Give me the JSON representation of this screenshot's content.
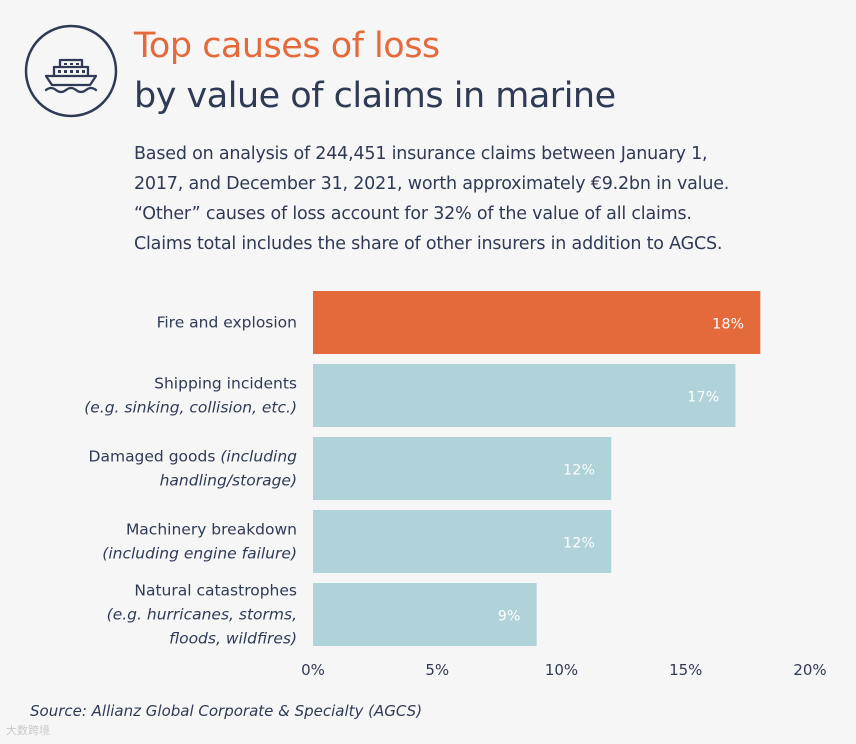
{
  "title": {
    "line1": "Top causes of loss",
    "line2": "by value of claims in marine"
  },
  "description": [
    "Based on analysis of 244,451 insurance claims between January 1,",
    "2017, and December 31, 2021, worth approximately €9.2bn in value.",
    "“Other” causes of loss account for 32% of the value of all claims.",
    "Claims total includes the share of other insurers in addition to AGCS."
  ],
  "icon": "ship-icon",
  "colors": {
    "highlight": "#e4693b",
    "bar": "#b0d3d9",
    "text": "#2f3a55",
    "value_label": "#ffffff"
  },
  "chart_data": {
    "type": "bar",
    "orientation": "horizontal",
    "categories": [
      {
        "main": "Fire and explosion",
        "sub": []
      },
      {
        "main": "Shipping incidents",
        "sub": [
          "(e.g. sinking, collision, etc.)"
        ]
      },
      {
        "main": "Damaged goods",
        "sub_inline": "(including",
        "sub": [
          "handling/storage)"
        ]
      },
      {
        "main": "Machinery breakdown",
        "sub": [
          "(including engine failure)"
        ]
      },
      {
        "main": "Natural catastrophes",
        "sub": [
          "(e.g. hurricanes, storms,",
          "floods, wildfires)"
        ]
      }
    ],
    "values": [
      18,
      17,
      12,
      12,
      9
    ],
    "value_labels": [
      "18%",
      "17%",
      "12%",
      "12%",
      "9%"
    ],
    "highlight_index": 0,
    "xlim": [
      0,
      20
    ],
    "xticks": [
      0,
      5,
      10,
      15,
      20
    ],
    "xtick_labels": [
      "0%",
      "5%",
      "10%",
      "15%",
      "20%"
    ],
    "xlabel": "",
    "ylabel": "",
    "grid": false,
    "legend": null
  },
  "source": "Source: Allianz Global Corporate & Specialty (AGCS)",
  "watermark": "大数跨境"
}
